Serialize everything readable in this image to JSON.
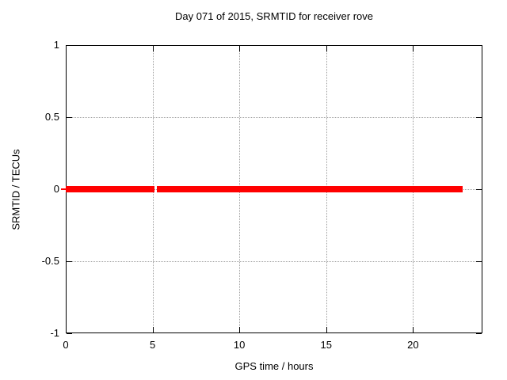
{
  "chart_data": {
    "type": "line",
    "title": "Day 071 of 2015, SRMTID for receiver rove",
    "xlabel": "GPS time / hours",
    "ylabel": "SRMTID / TECUs",
    "xlim": [
      0,
      24
    ],
    "ylim": [
      -1,
      1
    ],
    "xticks": [
      0,
      5,
      10,
      15,
      20
    ],
    "xtick_labels": [
      "0",
      "5",
      "10",
      "15",
      "20"
    ],
    "yticks": [
      1,
      0.5,
      0,
      -0.5,
      -1
    ],
    "ytick_labels": [
      "1",
      "0.5",
      "0",
      "-0.5",
      "-1"
    ],
    "grid": true,
    "grid_style": "dotted",
    "legend_position": "none",
    "series": [
      {
        "name": "SRMTID",
        "y": 0,
        "color": "#ff0000",
        "style": "thick band of densely plotted points at constant value 0",
        "segments": [
          {
            "x_start": 0,
            "x_end": 5.11
          },
          {
            "x_start": 5.26,
            "x_end": 22.87
          }
        ]
      }
    ],
    "colors": {
      "series": "#ff0000",
      "grid": "#9e9e9e",
      "axis": "#000000",
      "background": "#ffffff"
    }
  }
}
